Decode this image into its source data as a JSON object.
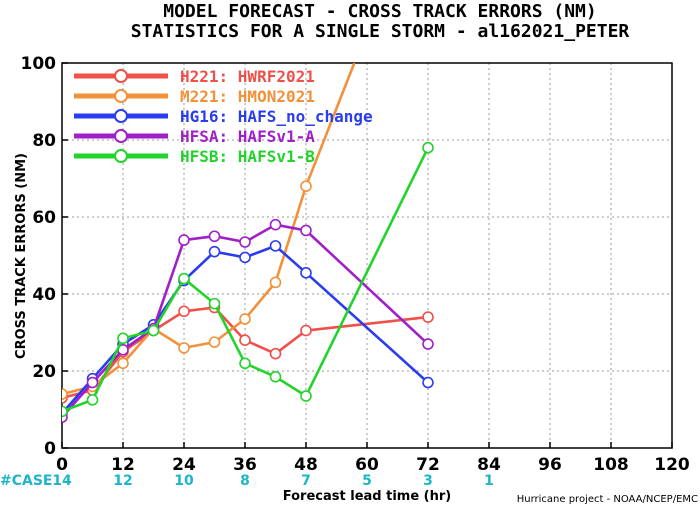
{
  "chart_data": {
    "type": "line",
    "title": "MODEL FORECAST - CROSS TRACK ERRORS (NM)",
    "subtitle": "STATISTICS FOR A SINGLE STORM - al162021_PETER",
    "xlabel": "Forecast lead time (hr)",
    "ylabel": "CROSS TRACK ERRORS (NM)",
    "xlim": [
      0,
      120
    ],
    "ylim": [
      0,
      100
    ],
    "xticks": [
      0,
      12,
      24,
      36,
      48,
      60,
      72,
      84,
      96,
      108,
      120
    ],
    "yticks": [
      0,
      20,
      40,
      60,
      80,
      100
    ],
    "grid": true,
    "legend_position": "top-left",
    "case_prefix": "#CASE",
    "cases": [
      {
        "x": 0,
        "n": "14"
      },
      {
        "x": 12,
        "n": "12"
      },
      {
        "x": 24,
        "n": "10"
      },
      {
        "x": 36,
        "n": "8"
      },
      {
        "x": 48,
        "n": "7"
      },
      {
        "x": 60,
        "n": "5"
      },
      {
        "x": 72,
        "n": "3"
      },
      {
        "x": 84,
        "n": "1"
      }
    ],
    "credit": "Hurricane project - NOAA/NCEP/EMC",
    "series": [
      {
        "name": "H221: HWRF2021",
        "color": "#f0504a",
        "x": [
          0,
          6,
          12,
          18,
          24,
          30,
          36,
          42,
          48,
          72
        ],
        "y": [
          13,
          15,
          25,
          30.5,
          35.5,
          36.5,
          28,
          24.5,
          30.5,
          34
        ]
      },
      {
        "name": "M221: HMON2021",
        "color": "#f2913a",
        "x": [
          0,
          6,
          12,
          18,
          24,
          30,
          36,
          42,
          48,
          57.5
        ],
        "y": [
          14,
          16,
          22,
          31,
          26,
          27.5,
          33.5,
          43,
          68,
          100
        ]
      },
      {
        "name": "HG16: HAFS_no_change",
        "color": "#2a3cf0",
        "x": [
          0,
          6,
          12,
          18,
          24,
          30,
          36,
          42,
          48,
          72
        ],
        "y": [
          9,
          18,
          27,
          32,
          43.5,
          51,
          49.5,
          52.5,
          45.5,
          17
        ]
      },
      {
        "name": "HFSA: HAFSv1-A",
        "color": "#a020c8",
        "x": [
          0,
          6,
          12,
          18,
          24,
          30,
          36,
          42,
          48,
          72
        ],
        "y": [
          8,
          17,
          25.5,
          31,
          54,
          55,
          53.5,
          58,
          56.5,
          27
        ]
      },
      {
        "name": "HFSB: HAFSv1-B",
        "color": "#22d42a",
        "x": [
          0,
          6,
          12,
          18,
          24,
          30,
          36,
          42,
          48,
          72
        ],
        "y": [
          9.5,
          12.5,
          28.5,
          30.5,
          44,
          37.5,
          22,
          18.5,
          13.5,
          78
        ]
      }
    ]
  }
}
